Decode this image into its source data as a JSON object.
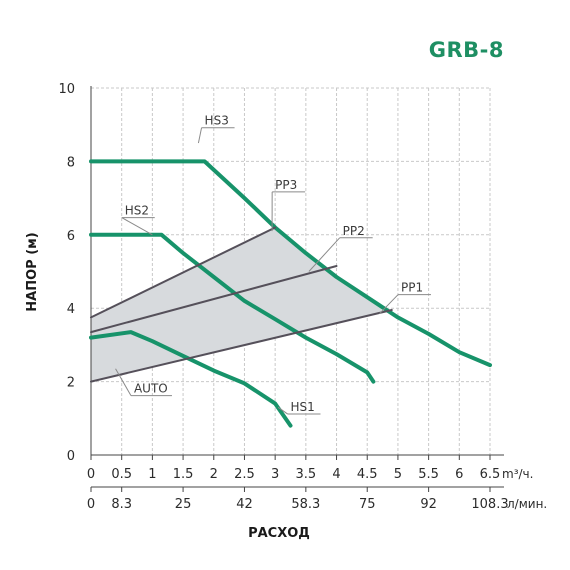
{
  "brand": {
    "title": "GRB-8",
    "color": "#1e8f63"
  },
  "colors": {
    "curve": "#17936a",
    "pp_line": "#55505a",
    "region": "#d7dadd",
    "label_line": "#8a8a8a",
    "grid": "#c9c9c9"
  },
  "chart_data": {
    "type": "line",
    "title": "GRB-8",
    "xlabel": "РАСХОД",
    "ylabel": "НАПОР (м)",
    "xlim": [
      0,
      6.5
    ],
    "ylim": [
      0,
      10
    ],
    "x_unit": "m³/ч.",
    "x2_unit": "л/мин.",
    "x_ticks": [
      "0",
      "0.5",
      "1",
      "1.5",
      "2",
      "2.5",
      "3",
      "3.5",
      "4",
      "4.5",
      "5",
      "5.5",
      "6",
      "6.5"
    ],
    "x2_ticks": [
      {
        "x": 0,
        "label": "0"
      },
      {
        "x": 0.5,
        "label": "8.3"
      },
      {
        "x": 1.5,
        "label": "25"
      },
      {
        "x": 2.5,
        "label": "42"
      },
      {
        "x": 3.5,
        "label": "58.3"
      },
      {
        "x": 4.5,
        "label": "75"
      },
      {
        "x": 5.5,
        "label": "92"
      },
      {
        "x": 6.5,
        "label": "108.3"
      }
    ],
    "y_ticks": [
      "0",
      "2",
      "4",
      "6",
      "8",
      "10"
    ],
    "grid": true,
    "series": [
      {
        "name": "HS3",
        "points": [
          [
            0,
            8.0
          ],
          [
            1.85,
            8.0
          ],
          [
            2.5,
            7.0
          ],
          [
            3.0,
            6.2
          ],
          [
            3.5,
            5.5
          ],
          [
            4.0,
            4.85
          ],
          [
            4.5,
            4.3
          ],
          [
            5.0,
            3.75
          ],
          [
            5.5,
            3.3
          ],
          [
            6.0,
            2.8
          ],
          [
            6.5,
            2.45
          ]
        ]
      },
      {
        "name": "HS2",
        "points": [
          [
            0,
            6.0
          ],
          [
            1.15,
            6.0
          ],
          [
            1.5,
            5.5
          ],
          [
            2.0,
            4.85
          ],
          [
            2.5,
            4.2
          ],
          [
            3.0,
            3.7
          ],
          [
            3.5,
            3.2
          ],
          [
            4.0,
            2.75
          ],
          [
            4.5,
            2.25
          ],
          [
            4.6,
            2.0
          ]
        ]
      },
      {
        "name": "HS1",
        "points": [
          [
            0,
            3.2
          ],
          [
            0.65,
            3.35
          ],
          [
            1.0,
            3.1
          ],
          [
            1.5,
            2.7
          ],
          [
            2.0,
            2.3
          ],
          [
            2.5,
            1.95
          ],
          [
            3.0,
            1.4
          ],
          [
            3.25,
            0.8
          ]
        ]
      },
      {
        "name": "PP3",
        "points": [
          [
            0,
            3.75
          ],
          [
            3.0,
            6.2
          ]
        ]
      },
      {
        "name": "PP2",
        "points": [
          [
            0,
            3.35
          ],
          [
            4.0,
            5.15
          ]
        ]
      },
      {
        "name": "PP1",
        "points": [
          [
            0,
            2.0
          ],
          [
            4.9,
            3.95
          ]
        ]
      }
    ],
    "auto_region": [
      [
        0,
        2.0
      ],
      [
        0,
        3.75
      ],
      [
        3.0,
        6.2
      ],
      [
        4.0,
        4.85
      ],
      [
        4.5,
        4.3
      ],
      [
        4.9,
        3.95
      ]
    ],
    "labels": [
      {
        "text": "HS3",
        "x": 1.85,
        "y": 9.0,
        "tx": 1.75,
        "ty": 8.5
      },
      {
        "text": "HS2",
        "x": 0.55,
        "y": 6.55,
        "tx": 1.0,
        "ty": 6.0
      },
      {
        "text": "PP3",
        "x": 3.0,
        "y": 7.25,
        "tx": 2.95,
        "ty": 6.1
      },
      {
        "text": "PP2",
        "x": 4.1,
        "y": 6.0,
        "tx": 3.55,
        "ty": 5.0
      },
      {
        "text": "PP1",
        "x": 5.05,
        "y": 4.45,
        "tx": 4.7,
        "ty": 3.85
      },
      {
        "text": "AUTO",
        "x": 0.7,
        "y": 1.7,
        "tx": 0.4,
        "ty": 2.35
      },
      {
        "text": "HS1",
        "x": 3.25,
        "y": 1.2,
        "tx": 3.05,
        "ty": 1.3
      }
    ]
  }
}
